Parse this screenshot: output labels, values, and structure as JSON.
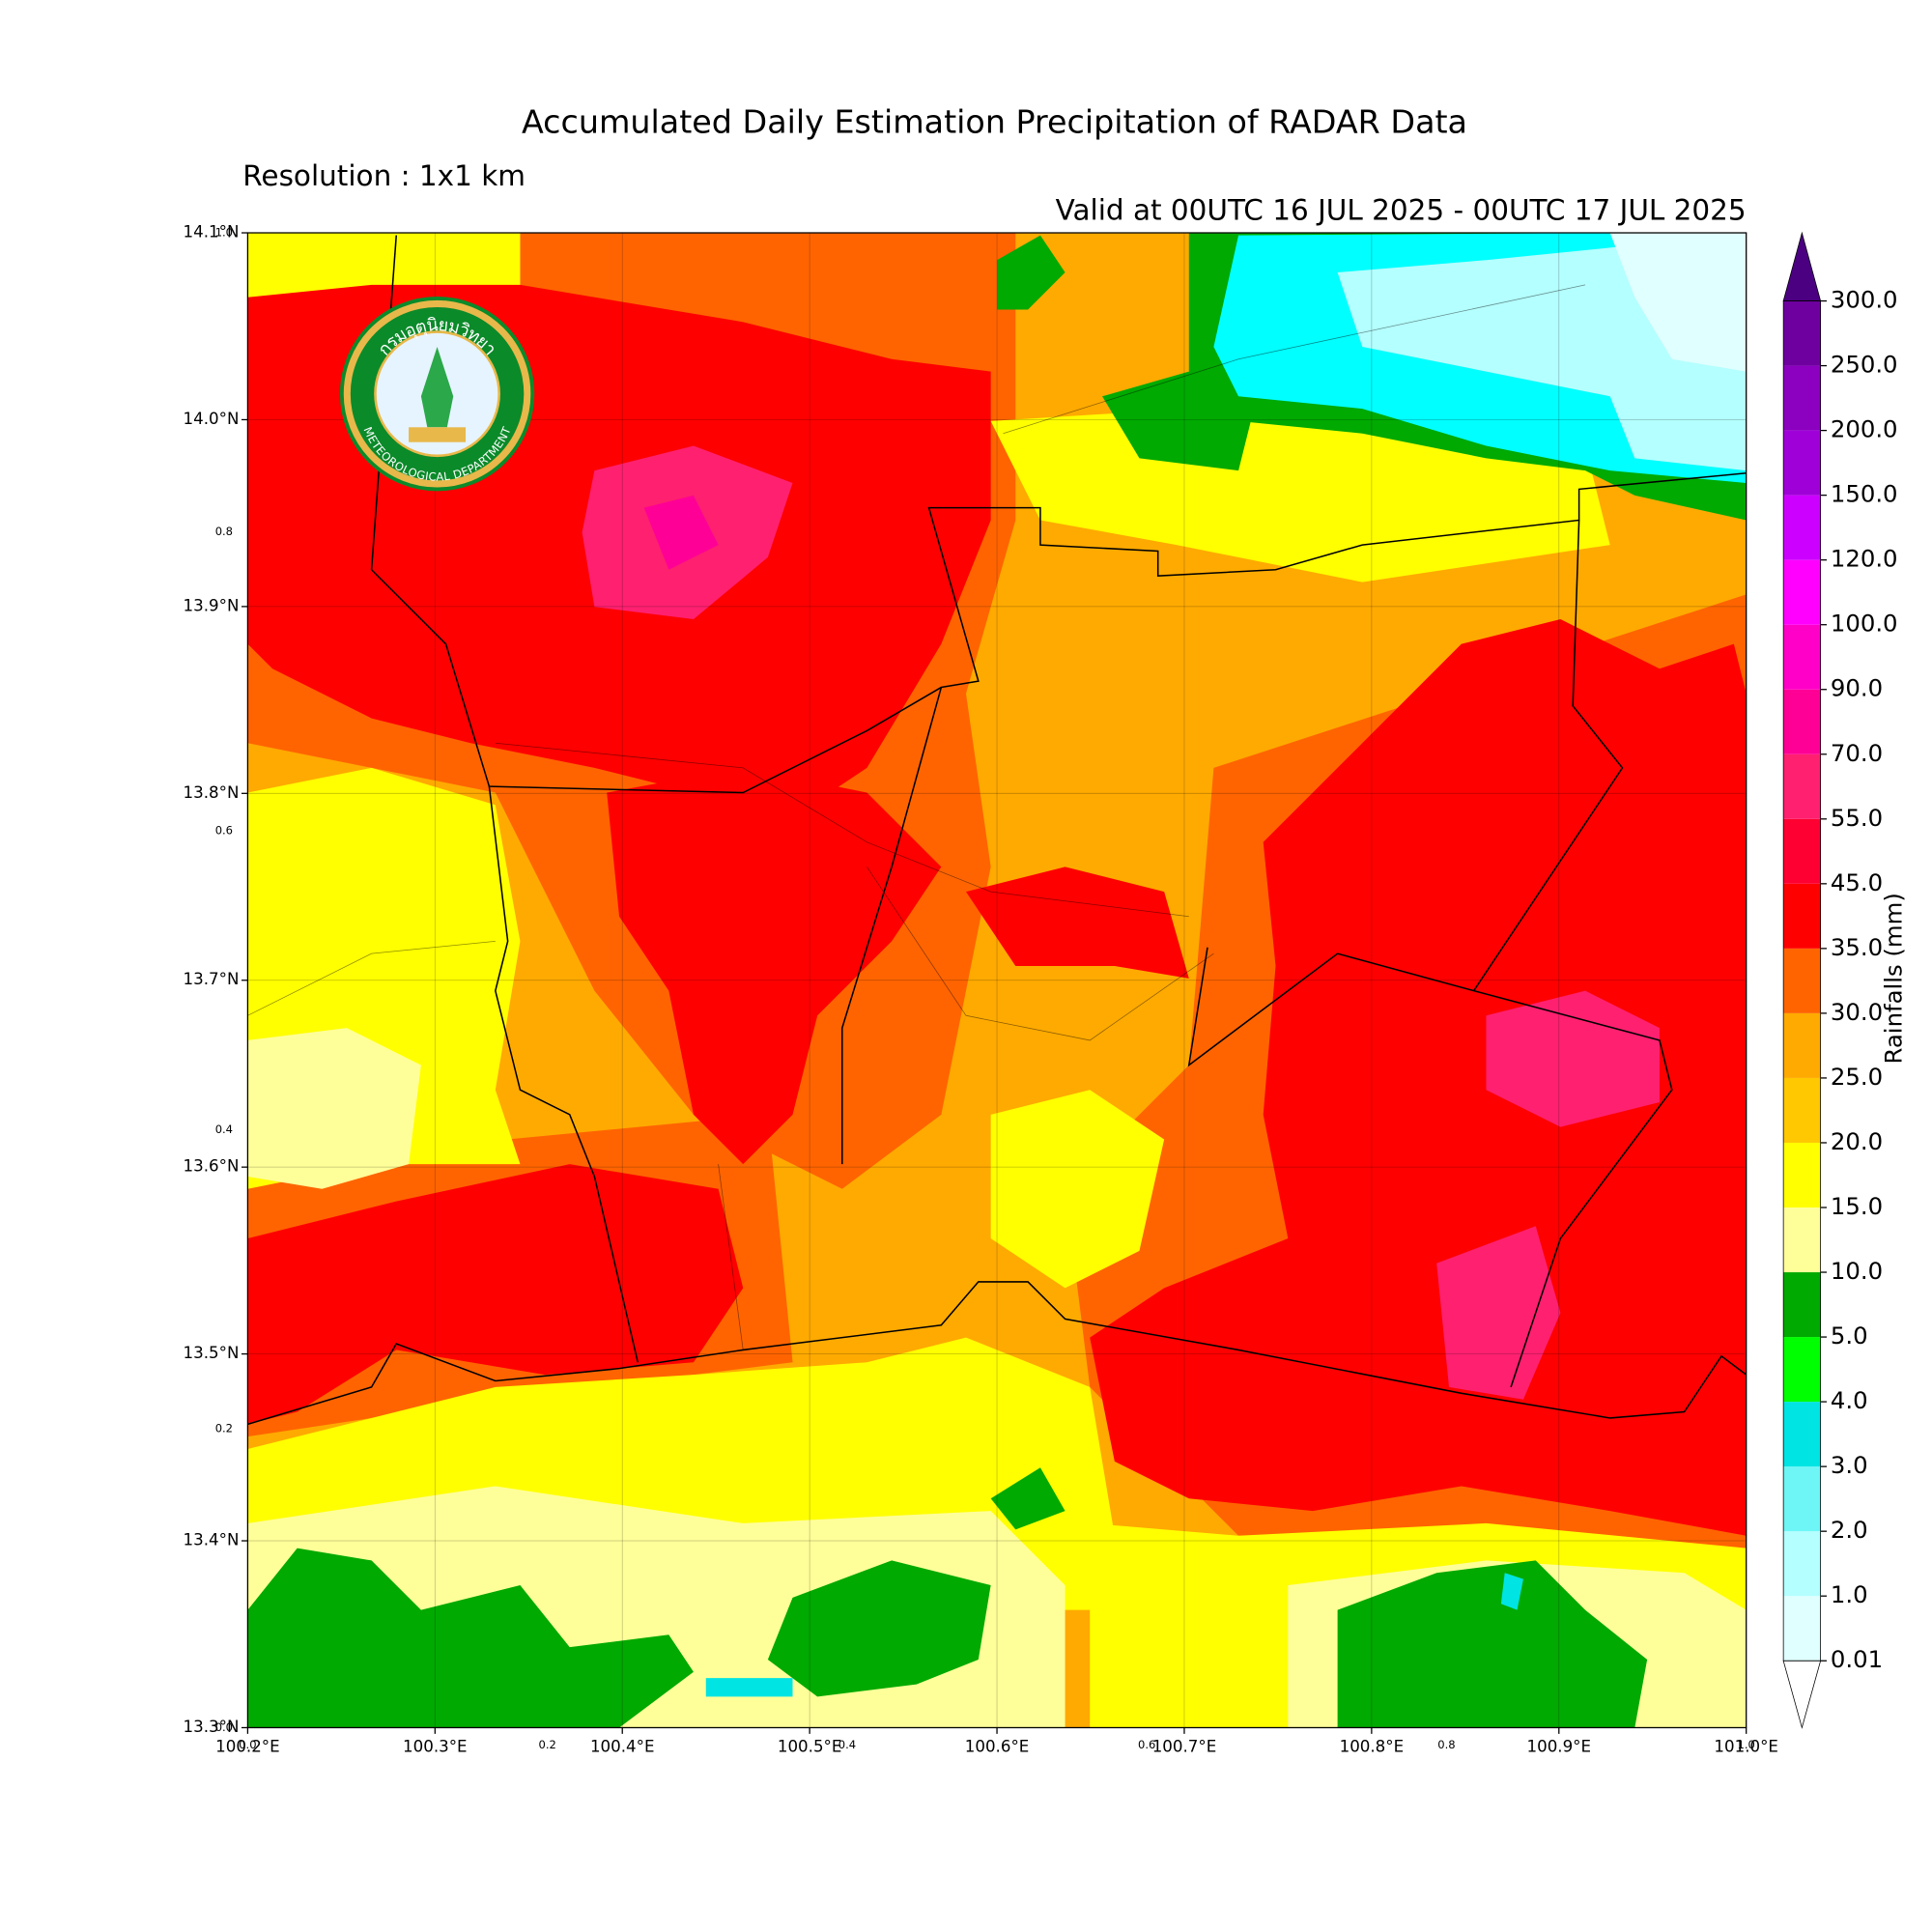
{
  "header": {
    "title": "Accumulated Daily Estimation Precipitation of RADAR Data",
    "resolution": "Resolution : 1x1 km",
    "valid": "Valid at 00UTC 16 JUL 2025 - 00UTC 17 JUL 2025"
  },
  "logo": {
    "thai": "กรมอุตุนิยมวิทยา",
    "english": "METEOROLOGICAL DEPARTMENT"
  },
  "map": {
    "xlim": [
      100.2,
      101.0
    ],
    "ylim": [
      13.3,
      14.1
    ],
    "grid": true,
    "xticks": [
      {
        "value": 100.2,
        "label": "100.2°E"
      },
      {
        "value": 100.3,
        "label": "100.3°E"
      },
      {
        "value": 100.4,
        "label": "100.4°E"
      },
      {
        "value": 100.5,
        "label": "100.5°E"
      },
      {
        "value": 100.6,
        "label": "100.6°E"
      },
      {
        "value": 100.7,
        "label": "100.7°E"
      },
      {
        "value": 100.8,
        "label": "100.8°E"
      },
      {
        "value": 100.9,
        "label": "100.9°E"
      },
      {
        "value": 101.0,
        "label": "101.0°E"
      }
    ],
    "yticks": [
      {
        "value": 13.3,
        "label": "13.3°N"
      },
      {
        "value": 13.4,
        "label": "13.4°N"
      },
      {
        "value": 13.5,
        "label": "13.5°N"
      },
      {
        "value": 13.6,
        "label": "13.6°N"
      },
      {
        "value": 13.7,
        "label": "13.7°N"
      },
      {
        "value": 13.8,
        "label": "13.8°N"
      },
      {
        "value": 13.9,
        "label": "13.9°N"
      },
      {
        "value": 14.0,
        "label": "14.0°N"
      },
      {
        "value": 14.1,
        "label": "14.1°N"
      }
    ],
    "frame_xlim": [
      0,
      1
    ],
    "frame_ylim": [
      0,
      1
    ],
    "frame_xticks": [
      {
        "value": 0,
        "label": "0.0"
      },
      0.2,
      0.4,
      0.6,
      0.8,
      {
        "value": 1,
        "label": "1.0"
      }
    ],
    "frame_yticks": [
      {
        "value": 0,
        "label": "0.0"
      },
      0.2,
      0.4,
      0.6,
      0.8,
      {
        "value": 1,
        "label": "1.0"
      }
    ]
  },
  "colorbar": {
    "label": "Rainfalls (mm)",
    "ticks": [
      0.01,
      {
        "value": 1,
        "label": "1.0"
      },
      {
        "value": 2,
        "label": "2.0"
      },
      {
        "value": 3,
        "label": "3.0"
      },
      {
        "value": 4,
        "label": "4.0"
      },
      {
        "value": 5,
        "label": "5.0"
      },
      {
        "value": 10,
        "label": "10.0"
      },
      {
        "value": 15,
        "label": "15.0"
      },
      {
        "value": 20,
        "label": "20.0"
      },
      {
        "value": 25,
        "label": "25.0"
      },
      {
        "value": 30,
        "label": "30.0"
      },
      {
        "value": 35,
        "label": "35.0"
      },
      {
        "value": 45,
        "label": "45.0"
      },
      {
        "value": 55,
        "label": "55.0"
      },
      {
        "value": 70,
        "label": "70.0"
      },
      {
        "value": 90,
        "label": "90.0"
      },
      {
        "value": 100,
        "label": "100.0"
      },
      {
        "value": 120,
        "label": "120.0"
      },
      {
        "value": 150,
        "label": "150.0"
      },
      {
        "value": 200,
        "label": "200.0"
      },
      {
        "value": 250,
        "label": "250.0"
      },
      {
        "value": 300,
        "label": "300.0"
      }
    ],
    "colors": [
      "#e0ffff",
      "#b4ffff",
      "#6ef6f6",
      "#00e4e4",
      "#00ff00",
      "#00aa00",
      "#ffff99",
      "#ffff00",
      "#ffc800",
      "#ffaa00",
      "#ff6400",
      "#ff0000",
      "#ff0032",
      "#ff2070",
      "#ff0096",
      "#ff00c8",
      "#ff00ff",
      "#cc00ff",
      "#a000d8",
      "#8c00c0",
      "#6e00a0"
    ],
    "over_color": "#4b0082",
    "under_color": "#ffffff"
  }
}
